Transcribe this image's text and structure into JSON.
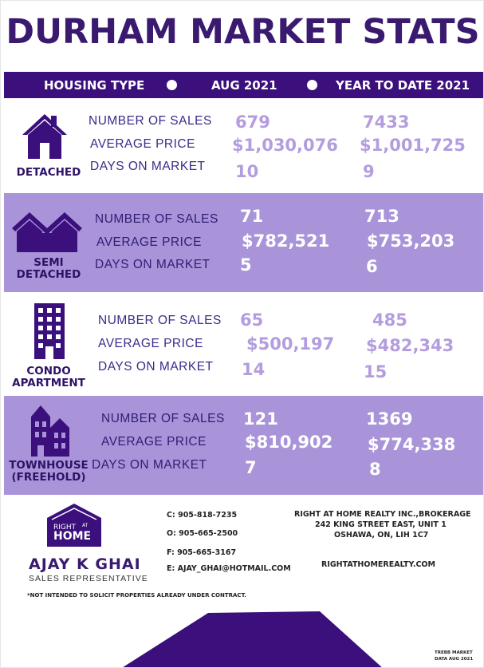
{
  "title": "DURHAM MARKET STATS",
  "header": {
    "col1": "HOUSING TYPE",
    "col2": "AUG 2021",
    "col3": "YEAR TO DATE 2021"
  },
  "labels": {
    "sales": "NUMBER OF SALES",
    "price": "AVERAGE PRICE",
    "days": "DAYS ON MARKET"
  },
  "rows": [
    {
      "type_line1": "DETACHED",
      "type_line2": "",
      "icon": "house-icon",
      "aug_sales": "679",
      "aug_price": "$1,030,076",
      "aug_days": "10",
      "ytd_sales": "7433",
      "ytd_price": "$1,001,725",
      "ytd_days": "9"
    },
    {
      "type_line1": "SEMI",
      "type_line2": "DETACHED",
      "icon": "semi-detached-icon",
      "aug_sales": "71",
      "aug_price": "$782,521",
      "aug_days": "5",
      "ytd_sales": "713",
      "ytd_price": "$753,203",
      "ytd_days": "6"
    },
    {
      "type_line1": "CONDO",
      "type_line2": "APARTMENT",
      "icon": "building-icon",
      "aug_sales": "65",
      "aug_price": "$500,197",
      "aug_days": "14",
      "ytd_sales": "485",
      "ytd_price": "$482,343",
      "ytd_days": "15"
    },
    {
      "type_line1": "TOWNHOUSE",
      "type_line2": "(FREEHOLD)",
      "icon": "townhouse-icon",
      "aug_sales": "121",
      "aug_price": "$810,902",
      "aug_days": "7",
      "ytd_sales": "1369",
      "ytd_price": "$774,338",
      "ytd_days": "8"
    }
  ],
  "contact": {
    "cell": "C: 905-818-7235",
    "office": "O: 905-665-2500",
    "fax": "F: 905-665-3167",
    "email": "E: AJAY_GHAI@HOTMAIL.COM"
  },
  "brokerage": {
    "name": "RIGHT AT HOME REALTY INC.,BROKERAGE",
    "street": "242 KING STREET EAST, UNIT 1",
    "city": "OSHAWA, ON, LIH 1C7",
    "website": "RIGHTATHOMEREALTY.COM"
  },
  "agent": {
    "name": "AJAY K GHAI",
    "role": "SALES REPRESENTATIVE"
  },
  "logo": {
    "line1": "RIGHT",
    "line2": "AT",
    "line3": "HOME"
  },
  "disclaimer": "*NOT INTENDED TO SOLICIT PROPERTIES ALREADY UNDER CONTRACT.",
  "source_line1": "TREBB MARKET",
  "source_line2": "DATA AUG 2021",
  "colors": {
    "brand": "#3b0f7c",
    "row_purple": "#a994d9",
    "value_light": "#b39ddf"
  }
}
